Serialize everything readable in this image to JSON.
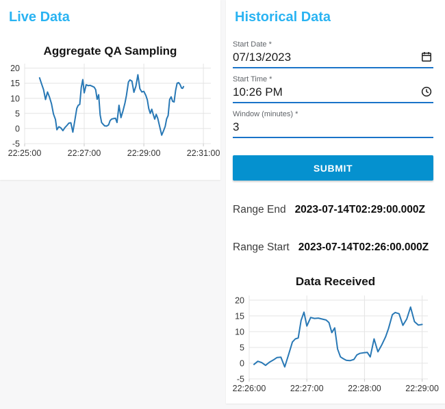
{
  "colors": {
    "page_bg": "#f7f7f8",
    "card_bg": "#ffffff",
    "heading_blue": "#29b3f2",
    "underline_blue": "#1973c8",
    "submit_bg": "#0591cf",
    "line_blue": "#2878b5",
    "grid": "#e4e4e4",
    "tick_label": "#333333",
    "field_label_gray": "#5f6368"
  },
  "live_panel": {
    "title": "Live Data"
  },
  "historical_panel": {
    "title": "Historical Data",
    "start_date": {
      "label": "Start Date *",
      "value": "07/13/2023"
    },
    "start_time": {
      "label": "Start Time *",
      "value": "10:26 PM"
    },
    "window": {
      "label": "Window (minutes) *",
      "value": "3"
    },
    "submit_label": "SUBMIT",
    "range_end": {
      "label": "Range End",
      "value": "2023-07-14T02:29:00.000Z"
    },
    "range_start": {
      "label": "Range Start",
      "value": "2023-07-14T02:26:00.000Z"
    }
  },
  "chart_data": [
    {
      "type": "line",
      "title": "Aggregate QA Sampling",
      "xlabel": "",
      "ylabel": "",
      "legend": "none",
      "grid": true,
      "line_color": "#2878b5",
      "x_unit": "seconds after 22:25:00",
      "x_render_range": [
        0,
        375
      ],
      "y_render_range": [
        -5,
        21.5
      ],
      "ylim": [
        -5,
        20
      ],
      "x_ticks": [
        {
          "t": 0,
          "label": "22:25:00"
        },
        {
          "t": 120,
          "label": "22:27:00"
        },
        {
          "t": 240,
          "label": "22:29:00"
        },
        {
          "t": 360,
          "label": "22:31:00"
        }
      ],
      "y_ticks": [
        -5,
        0,
        5,
        10,
        15,
        20
      ],
      "points": [
        [
          30,
          16.8
        ],
        [
          34,
          14.8
        ],
        [
          38,
          12.9
        ],
        [
          42,
          9.6
        ],
        [
          46,
          12.1
        ],
        [
          50,
          10.4
        ],
        [
          54,
          8.2
        ],
        [
          58,
          4.8
        ],
        [
          62,
          3.0
        ],
        [
          65,
          -0.4
        ],
        [
          69,
          0.6
        ],
        [
          73,
          0.2
        ],
        [
          77,
          -0.7
        ],
        [
          81,
          0.3
        ],
        [
          85,
          1.0
        ],
        [
          89,
          1.8
        ],
        [
          93,
          1.9
        ],
        [
          97,
          -1.2
        ],
        [
          101,
          2.7
        ],
        [
          105,
          6.7
        ],
        [
          108,
          7.7
        ],
        [
          111,
          8.0
        ],
        [
          114,
          13.6
        ],
        [
          117,
          16.2
        ],
        [
          120,
          11.8
        ],
        [
          124,
          14.5
        ],
        [
          128,
          14.2
        ],
        [
          132,
          14.3
        ],
        [
          136,
          14.0
        ],
        [
          140,
          13.7
        ],
        [
          143,
          12.9
        ],
        [
          146,
          9.7
        ],
        [
          149,
          11.2
        ],
        [
          152,
          4.5
        ],
        [
          155,
          2.0
        ],
        [
          158,
          1.4
        ],
        [
          161,
          0.9
        ],
        [
          165,
          0.8
        ],
        [
          169,
          1.2
        ],
        [
          172,
          2.6
        ],
        [
          175,
          3.1
        ],
        [
          179,
          3.3
        ],
        [
          183,
          3.4
        ],
        [
          186,
          2.0
        ],
        [
          190,
          7.7
        ],
        [
          194,
          3.6
        ],
        [
          198,
          5.8
        ],
        [
          202,
          8.4
        ],
        [
          205,
          11.0
        ],
        [
          209,
          15.4
        ],
        [
          212,
          16.1
        ],
        [
          216,
          15.7
        ],
        [
          220,
          12.0
        ],
        [
          224,
          14.0
        ],
        [
          228,
          17.8
        ],
        [
          232,
          13.2
        ],
        [
          236,
          12.1
        ],
        [
          240,
          12.3
        ],
        [
          244,
          11.0
        ],
        [
          247,
          9.5
        ],
        [
          250,
          6.6
        ],
        [
          253,
          5.0
        ],
        [
          256,
          6.4
        ],
        [
          259,
          4.6
        ],
        [
          262,
          3.1
        ],
        [
          265,
          4.7
        ],
        [
          268,
          3.4
        ],
        [
          272,
          0.6
        ],
        [
          276,
          -2.2
        ],
        [
          280,
          -0.6
        ],
        [
          283,
          0.7
        ],
        [
          286,
          3.2
        ],
        [
          289,
          4.3
        ],
        [
          292,
          9.6
        ],
        [
          295,
          10.5
        ],
        [
          298,
          9.0
        ],
        [
          301,
          8.8
        ],
        [
          304,
          12.6
        ],
        [
          307,
          15.0
        ],
        [
          310,
          15.2
        ],
        [
          313,
          14.6
        ],
        [
          316,
          13.4
        ],
        [
          318,
          13.3
        ],
        [
          320,
          13.9
        ]
      ]
    },
    {
      "type": "line",
      "title": "Data Received",
      "xlabel": "",
      "ylabel": "",
      "legend": "none",
      "grid": true,
      "line_color": "#2878b5",
      "x_unit": "seconds after 22:26:00",
      "x_render_range": [
        0,
        186
      ],
      "y_render_range": [
        -5,
        21.5
      ],
      "ylim": [
        -5,
        20
      ],
      "x_ticks": [
        {
          "t": 0,
          "label": "22:26:00"
        },
        {
          "t": 60,
          "label": "22:27:00"
        },
        {
          "t": 120,
          "label": "22:28:00"
        },
        {
          "t": 180,
          "label": "22:29:00"
        }
      ],
      "y_ticks": [
        -5,
        0,
        5,
        10,
        15,
        20
      ],
      "points": [
        [
          5,
          -0.4
        ],
        [
          9,
          0.6
        ],
        [
          13,
          0.2
        ],
        [
          17,
          -0.7
        ],
        [
          21,
          0.3
        ],
        [
          25,
          1.0
        ],
        [
          29,
          1.8
        ],
        [
          33,
          1.9
        ],
        [
          37,
          -1.2
        ],
        [
          41,
          2.7
        ],
        [
          45,
          6.7
        ],
        [
          48,
          7.7
        ],
        [
          51,
          8.0
        ],
        [
          54,
          13.6
        ],
        [
          57,
          16.2
        ],
        [
          60,
          11.8
        ],
        [
          64,
          14.5
        ],
        [
          68,
          14.2
        ],
        [
          72,
          14.3
        ],
        [
          76,
          14.0
        ],
        [
          80,
          13.7
        ],
        [
          83,
          12.9
        ],
        [
          86,
          9.7
        ],
        [
          89,
          11.2
        ],
        [
          92,
          4.5
        ],
        [
          95,
          2.0
        ],
        [
          98,
          1.4
        ],
        [
          101,
          0.9
        ],
        [
          105,
          0.8
        ],
        [
          109,
          1.2
        ],
        [
          112,
          2.6
        ],
        [
          115,
          3.1
        ],
        [
          119,
          3.3
        ],
        [
          123,
          3.4
        ],
        [
          126,
          2.0
        ],
        [
          130,
          7.7
        ],
        [
          134,
          3.6
        ],
        [
          138,
          5.8
        ],
        [
          142,
          8.4
        ],
        [
          145,
          11.0
        ],
        [
          149,
          15.4
        ],
        [
          152,
          16.1
        ],
        [
          156,
          15.7
        ],
        [
          160,
          12.0
        ],
        [
          164,
          14.0
        ],
        [
          168,
          17.8
        ],
        [
          172,
          13.2
        ],
        [
          176,
          12.1
        ],
        [
          180,
          12.3
        ]
      ]
    }
  ]
}
